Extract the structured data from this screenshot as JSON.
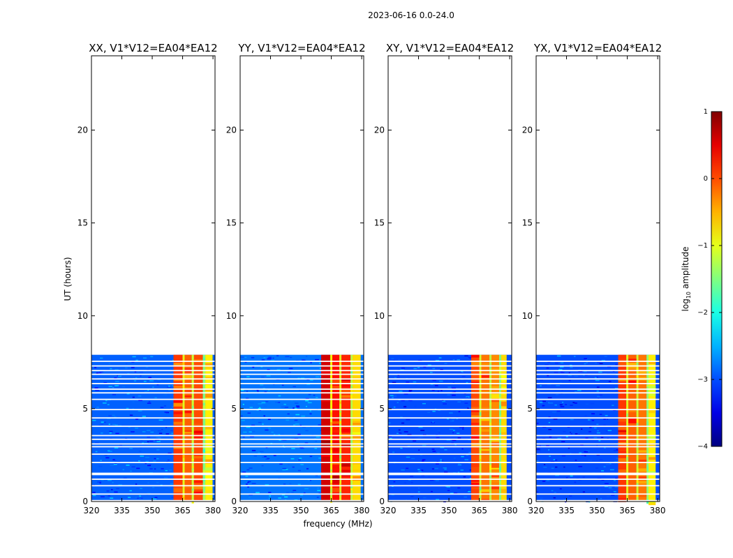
{
  "suptitle": "2023-06-16 0.0-24.0",
  "chart_data": {
    "type": "heatmap",
    "shared": {
      "xlabel": "frequency (MHz)",
      "ylabel": "UT (hours)",
      "xlim": [
        320,
        381
      ],
      "ylim": [
        0,
        24
      ],
      "x_ticks": [
        "320",
        "335",
        "350",
        "365",
        "380"
      ],
      "x_tick_values": [
        320,
        335,
        350,
        365,
        380
      ],
      "y_ticks": [
        "0",
        "5",
        "10",
        "15",
        "20"
      ],
      "y_tick_values": [
        0,
        5,
        10,
        15,
        20
      ],
      "data_extent_hours": [
        0,
        7.9
      ]
    },
    "panels": [
      {
        "title": "XX, V1*V12=EA04*EA12",
        "background_log_amp": -2.9,
        "band_mhz": [
          360.5,
          379.8
        ],
        "band_log_amp": -0.6,
        "band_channels": [
          {
            "from": 360.5,
            "to": 365.0,
            "log_amp": 0.1
          },
          {
            "from": 365.0,
            "to": 366.0,
            "log_amp": -1.0
          },
          {
            "from": 366.0,
            "to": 369.5,
            "log_amp": -0.1
          },
          {
            "from": 369.5,
            "to": 370.6,
            "log_amp": -1.1
          },
          {
            "from": 370.6,
            "to": 375.0,
            "log_amp": 0.0
          },
          {
            "from": 375.0,
            "to": 376.2,
            "log_amp": -1.5
          },
          {
            "from": 376.2,
            "to": 379.8,
            "log_amp": -0.8
          }
        ]
      },
      {
        "title": "YY, V1*V12=EA04*EA12",
        "background_log_amp": -2.8,
        "band_mhz": [
          360.0,
          379.5
        ],
        "band_log_amp": -0.2,
        "band_channels": [
          {
            "from": 360.0,
            "to": 364.5,
            "log_amp": 0.6
          },
          {
            "from": 364.5,
            "to": 365.5,
            "log_amp": -0.9
          },
          {
            "from": 365.5,
            "to": 369.0,
            "log_amp": 0.3
          },
          {
            "from": 369.0,
            "to": 370.0,
            "log_amp": -1.0
          },
          {
            "from": 370.0,
            "to": 374.5,
            "log_amp": 0.2
          },
          {
            "from": 374.5,
            "to": 375.5,
            "log_amp": -1.2
          },
          {
            "from": 375.5,
            "to": 379.5,
            "log_amp": -0.7
          }
        ]
      },
      {
        "title": "XY, V1*V12=EA04*EA12",
        "background_log_amp": -3.0,
        "band_mhz": [
          361.0,
          378.5
        ],
        "band_log_amp": -0.4,
        "band_channels": [
          {
            "from": 361.0,
            "to": 365.0,
            "log_amp": 0.0
          },
          {
            "from": 365.0,
            "to": 366.0,
            "log_amp": -1.1
          },
          {
            "from": 366.0,
            "to": 370.0,
            "log_amp": -0.2
          },
          {
            "from": 370.0,
            "to": 371.0,
            "log_amp": -1.2
          },
          {
            "from": 371.0,
            "to": 374.8,
            "log_amp": -0.3
          },
          {
            "from": 374.8,
            "to": 375.8,
            "log_amp": -1.5
          },
          {
            "from": 375.8,
            "to": 378.5,
            "log_amp": -0.7
          }
        ]
      },
      {
        "title": "YX, V1*V12=EA04*EA12",
        "background_log_amp": -3.0,
        "band_mhz": [
          360.5,
          379.0
        ],
        "band_log_amp": -0.5,
        "band_channels": [
          {
            "from": 360.5,
            "to": 364.5,
            "log_amp": 0.1
          },
          {
            "from": 364.5,
            "to": 365.5,
            "log_amp": -1.0
          },
          {
            "from": 365.5,
            "to": 369.5,
            "log_amp": -0.1
          },
          {
            "from": 369.5,
            "to": 370.5,
            "log_amp": -1.1
          },
          {
            "from": 370.5,
            "to": 374.5,
            "log_amp": -0.2
          },
          {
            "from": 374.5,
            "to": 375.5,
            "log_amp": -1.4
          },
          {
            "from": 375.5,
            "to": 379.0,
            "log_amp": -0.8
          }
        ]
      }
    ],
    "gap_hours": [
      0.05,
      0.4,
      0.85,
      1.2,
      1.45,
      1.52,
      2.1,
      2.55,
      2.95,
      3.1,
      3.35,
      3.55,
      4.05,
      4.5,
      4.95,
      5.5,
      5.85,
      6.05,
      6.35,
      6.6,
      6.85,
      7.05,
      7.3,
      7.55
    ],
    "colorbar": {
      "label_prefix": "log",
      "label_sub": "10",
      "label_suffix": " amplitude",
      "range": [
        -4,
        1
      ],
      "ticks": [
        "1",
        "0",
        "−1",
        "−2",
        "−3",
        "−4"
      ],
      "tick_values": [
        1,
        0,
        -1,
        -2,
        -3,
        -4
      ],
      "colormap": "jet"
    }
  }
}
